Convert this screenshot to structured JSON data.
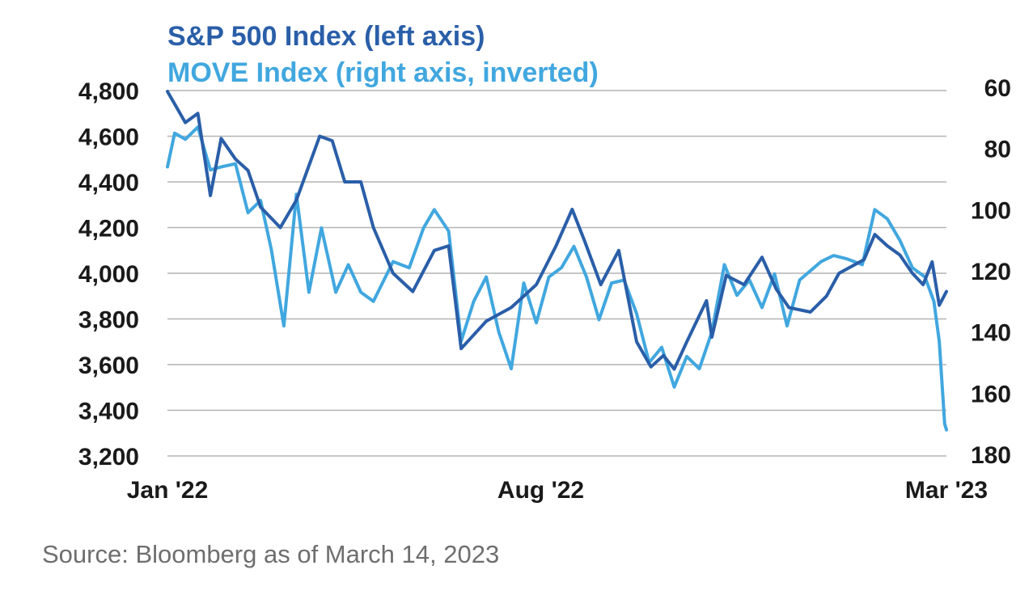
{
  "chart_data": {
    "type": "line",
    "legend": [
      {
        "name": "S&P 500 Index (left axis)",
        "color": "#2a5ea8"
      },
      {
        "name": "MOVE Index (right axis, inverted)",
        "color": "#41a7df"
      }
    ],
    "x_tick_labels": [
      "Jan '22",
      "Aug '22",
      "Mar '23"
    ],
    "x_range": [
      "2022-01-03",
      "2023-03-14"
    ],
    "y_left": {
      "ticks": [
        4800,
        4600,
        4400,
        4200,
        4000,
        3800,
        3600,
        3400,
        3200
      ],
      "tick_labels": [
        "4,800",
        "4,600",
        "4,400",
        "4,200",
        "4,000",
        "3,800",
        "3,600",
        "3,400",
        "3,200"
      ],
      "range": [
        3200,
        4800
      ]
    },
    "y_right": {
      "ticks": [
        60,
        80,
        100,
        120,
        140,
        160,
        180
      ],
      "tick_labels": [
        "60",
        "80",
        "100",
        "120",
        "140",
        "160",
        "180"
      ],
      "range": [
        60,
        180
      ],
      "inverted": true
    },
    "grid": "horizontal",
    "series": [
      {
        "name": "S&P 500 Index (left axis)",
        "axis": "left",
        "color": "#2a5ea8",
        "points": [
          [
            "2022-01-03",
            4796
          ],
          [
            "2022-01-13",
            4660
          ],
          [
            "2022-01-20",
            4700
          ],
          [
            "2022-01-27",
            4340
          ],
          [
            "2022-02-02",
            4590
          ],
          [
            "2022-02-10",
            4500
          ],
          [
            "2022-02-17",
            4450
          ],
          [
            "2022-02-24",
            4290
          ],
          [
            "2022-03-07",
            4200
          ],
          [
            "2022-03-16",
            4320
          ],
          [
            "2022-03-29",
            4600
          ],
          [
            "2022-04-05",
            4580
          ],
          [
            "2022-04-12",
            4400
          ],
          [
            "2022-04-21",
            4400
          ],
          [
            "2022-04-28",
            4200
          ],
          [
            "2022-05-09",
            4000
          ],
          [
            "2022-05-20",
            3920
          ],
          [
            "2022-06-01",
            4100
          ],
          [
            "2022-06-09",
            4120
          ],
          [
            "2022-06-16",
            3670
          ],
          [
            "2022-06-30",
            3790
          ],
          [
            "2022-07-14",
            3850
          ],
          [
            "2022-07-28",
            3950
          ],
          [
            "2022-08-08",
            4120
          ],
          [
            "2022-08-17",
            4280
          ],
          [
            "2022-08-24",
            4140
          ],
          [
            "2022-09-02",
            3950
          ],
          [
            "2022-09-12",
            4100
          ],
          [
            "2022-09-22",
            3700
          ],
          [
            "2022-09-30",
            3590
          ],
          [
            "2022-10-07",
            3640
          ],
          [
            "2022-10-13",
            3580
          ],
          [
            "2022-10-20",
            3700
          ],
          [
            "2022-10-31",
            3880
          ],
          [
            "2022-11-03",
            3720
          ],
          [
            "2022-11-11",
            3990
          ],
          [
            "2022-11-21",
            3950
          ],
          [
            "2022-12-01",
            4070
          ],
          [
            "2022-12-09",
            3930
          ],
          [
            "2022-12-16",
            3850
          ],
          [
            "2022-12-28",
            3830
          ],
          [
            "2023-01-06",
            3900
          ],
          [
            "2023-01-13",
            4000
          ],
          [
            "2023-01-27",
            4060
          ],
          [
            "2023-02-02",
            4170
          ],
          [
            "2023-02-09",
            4120
          ],
          [
            "2023-02-16",
            4080
          ],
          [
            "2023-02-23",
            4000
          ],
          [
            "2023-03-01",
            3950
          ],
          [
            "2023-03-06",
            4050
          ],
          [
            "2023-03-10",
            3860
          ],
          [
            "2023-03-14",
            3920
          ]
        ]
      },
      {
        "name": "MOVE Index (right axis, inverted)",
        "axis": "right",
        "color": "#41a7df",
        "points": [
          [
            "2022-01-03",
            86
          ],
          [
            "2022-01-07",
            75
          ],
          [
            "2022-01-13",
            77
          ],
          [
            "2022-01-20",
            73
          ],
          [
            "2022-01-27",
            87
          ],
          [
            "2022-02-02",
            86
          ],
          [
            "2022-02-10",
            85
          ],
          [
            "2022-02-17",
            101
          ],
          [
            "2022-02-24",
            97
          ],
          [
            "2022-03-02",
            113
          ],
          [
            "2022-03-09",
            138
          ],
          [
            "2022-03-16",
            95
          ],
          [
            "2022-03-23",
            127
          ],
          [
            "2022-03-30",
            106
          ],
          [
            "2022-04-07",
            127
          ],
          [
            "2022-04-14",
            118
          ],
          [
            "2022-04-21",
            127
          ],
          [
            "2022-04-28",
            130
          ],
          [
            "2022-05-09",
            117
          ],
          [
            "2022-05-18",
            119
          ],
          [
            "2022-05-26",
            106
          ],
          [
            "2022-06-01",
            100
          ],
          [
            "2022-06-09",
            107
          ],
          [
            "2022-06-16",
            143
          ],
          [
            "2022-06-23",
            130
          ],
          [
            "2022-06-30",
            122
          ],
          [
            "2022-07-07",
            140
          ],
          [
            "2022-07-14",
            152
          ],
          [
            "2022-07-21",
            124
          ],
          [
            "2022-07-28",
            137
          ],
          [
            "2022-08-04",
            122
          ],
          [
            "2022-08-11",
            119
          ],
          [
            "2022-08-18",
            112
          ],
          [
            "2022-08-25",
            122
          ],
          [
            "2022-09-01",
            136
          ],
          [
            "2022-09-08",
            124
          ],
          [
            "2022-09-15",
            123
          ],
          [
            "2022-09-22",
            134
          ],
          [
            "2022-09-29",
            150
          ],
          [
            "2022-10-06",
            145
          ],
          [
            "2022-10-13",
            158
          ],
          [
            "2022-10-20",
            148
          ],
          [
            "2022-10-27",
            152
          ],
          [
            "2022-11-03",
            140
          ],
          [
            "2022-11-10",
            118
          ],
          [
            "2022-11-17",
            128
          ],
          [
            "2022-11-24",
            123
          ],
          [
            "2022-12-01",
            132
          ],
          [
            "2022-12-08",
            121
          ],
          [
            "2022-12-15",
            138
          ],
          [
            "2022-12-22",
            123
          ],
          [
            "2023-01-03",
            117
          ],
          [
            "2023-01-10",
            115
          ],
          [
            "2023-01-17",
            116
          ],
          [
            "2023-01-26",
            118
          ],
          [
            "2023-02-02",
            100
          ],
          [
            "2023-02-09",
            103
          ],
          [
            "2023-02-16",
            110
          ],
          [
            "2023-02-23",
            119
          ],
          [
            "2023-03-02",
            122
          ],
          [
            "2023-03-07",
            130
          ],
          [
            "2023-03-10",
            143
          ],
          [
            "2023-03-13",
            170
          ],
          [
            "2023-03-14",
            172
          ]
        ]
      }
    ]
  },
  "source": "Source: Bloomberg as of March 14, 2023"
}
